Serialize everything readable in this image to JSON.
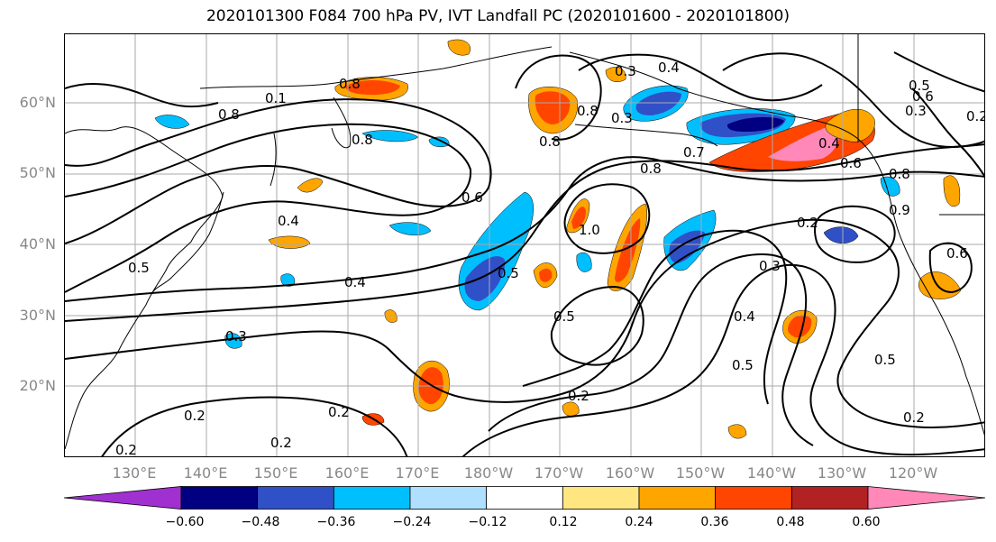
{
  "title": "2020101300 F084 700 hPa PV, IVT Landfall PC (2020101600 - 2020101800)",
  "lat_labels": [
    "60°N",
    "50°N",
    "40°N",
    "30°N",
    "20°N"
  ],
  "lon_labels": [
    "130°E",
    "140°E",
    "150°E",
    "160°E",
    "170°E",
    "180°W",
    "170°W",
    "160°W",
    "150°W",
    "140°W",
    "130°W",
    "120°W"
  ],
  "contour_labels": [
    "0.8",
    "0.1",
    "0.8",
    "0.8",
    "0.3",
    "0.4",
    "0.8",
    "0.3",
    "0.8",
    "0.7",
    "0.8",
    "0.6",
    "0.4",
    "0.6",
    "0.4",
    "0.8",
    "0.6",
    "1.0",
    "0.5",
    "0.5",
    "0.4",
    "0.5",
    "0.2",
    "0.3",
    "0.4",
    "0.5",
    "0.5",
    "0.2",
    "0.2",
    "0.6",
    "0.2",
    "0.2",
    "0.2",
    "0.2",
    "0.3",
    "0.9",
    "0.3",
    "0.5",
    "0.2"
  ],
  "colorbar": {
    "ticks": [
      "−0.60",
      "−0.48",
      "−0.36",
      "−0.24",
      "−0.12",
      "0.12",
      "0.24",
      "0.36",
      "0.48",
      "0.60"
    ],
    "colors": [
      "#a030d0",
      "#000080",
      "#3050c8",
      "#00bfff",
      "#b0e0ff",
      "#ffffff",
      "#ffe680",
      "#ffa500",
      "#ff4500",
      "#b22222",
      "#ff88b8"
    ],
    "extend": "both"
  },
  "colors": {
    "neg_dark": "#000080",
    "neg_mid": "#3050c8",
    "neg_light": "#00bfff",
    "pos_light": "#ffe680",
    "pos_mid": "#ffa500",
    "pos_strong": "#ff4500",
    "pos_max": "#ff88b8",
    "contour": "#000000",
    "grid": "#aaaaaa",
    "tick_label": "#888888"
  }
}
